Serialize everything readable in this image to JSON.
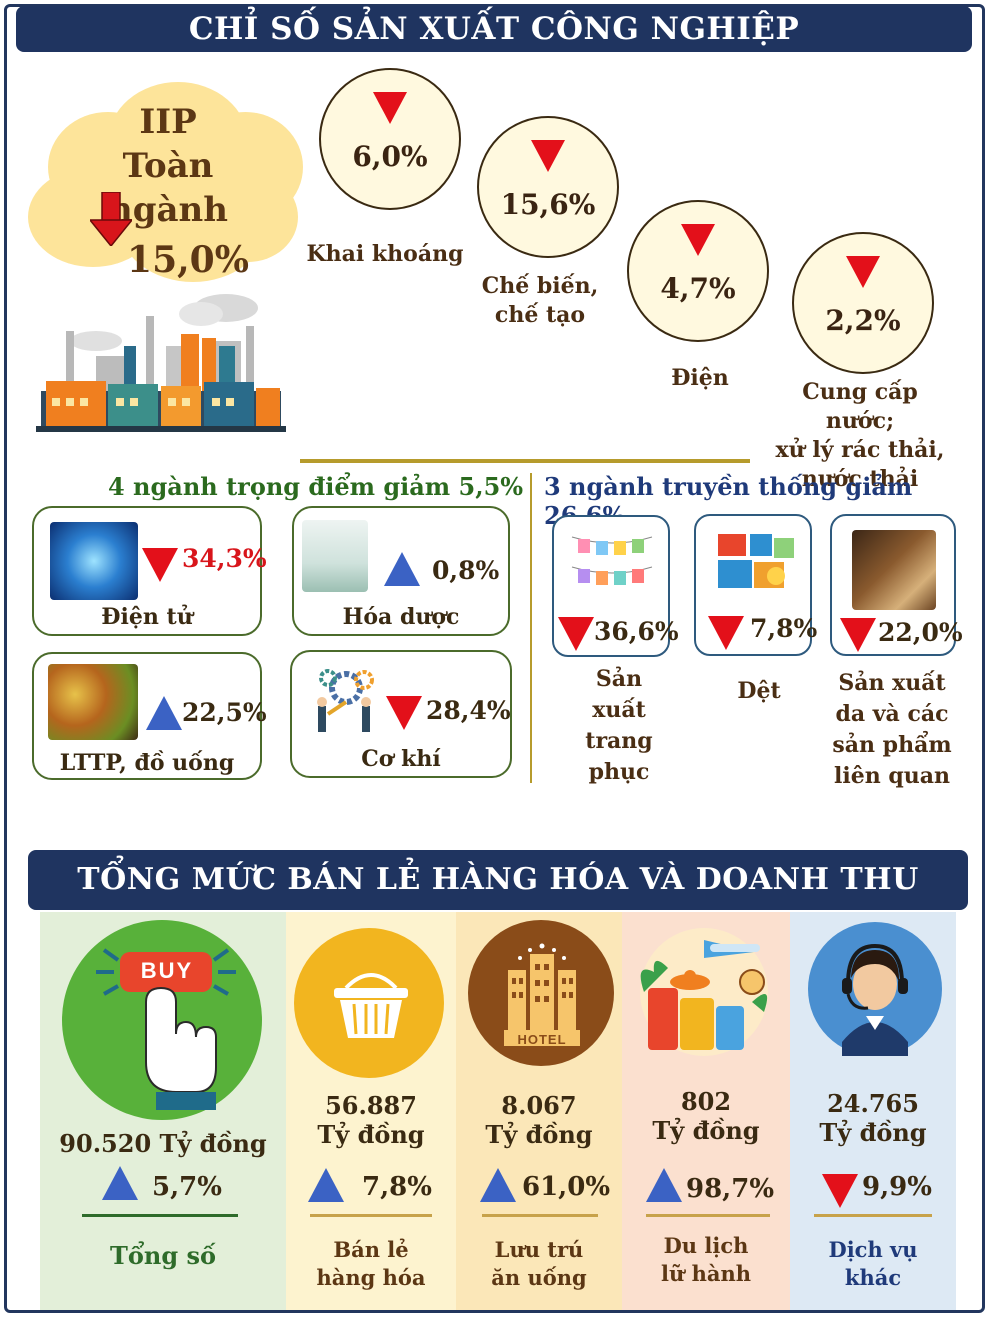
{
  "iip_section": {
    "title": "CHỈ SỐ SẢN XUẤT CÔNG NGHIỆP",
    "overall": {
      "line1": "IIP",
      "line2": "Toàn ngành",
      "value": "15,0%",
      "direction": "down"
    },
    "sectors": [
      {
        "value": "6,0%",
        "label": "Khai khoáng",
        "direction": "down"
      },
      {
        "value": "15,6%",
        "label": "Chế biến, chế tạo",
        "label_l1": "Chế biến,",
        "label_l2": "chế tạo",
        "direction": "down"
      },
      {
        "value": "4,7%",
        "label": "Điện",
        "direction": "down"
      },
      {
        "value": "2,2%",
        "label_l1": "Cung cấp nước;",
        "label_l2": "xử lý rác thải,",
        "label_l3": "nước thải",
        "direction": "down"
      }
    ],
    "key_industries": {
      "heading": "4 ngành trọng điểm giảm 5,5%",
      "items": [
        {
          "label": "Điện tử",
          "value": "34,3%",
          "direction": "down"
        },
        {
          "label": "Hóa dược",
          "value": "0,8%",
          "direction": "up"
        },
        {
          "label": "LTTP, đồ uống",
          "value": "22,5%",
          "direction": "up"
        },
        {
          "label": "Cơ khí",
          "value": "28,4%",
          "direction": "down"
        }
      ]
    },
    "traditional": {
      "heading": "3 ngành truyền thống giảm 26,6%",
      "items": [
        {
          "value": "36,6%",
          "l1": "Sản",
          "l2": "xuất",
          "l3": "trang",
          "l4": "phục",
          "direction": "down"
        },
        {
          "value": "7,8%",
          "l1": "Dệt",
          "direction": "down"
        },
        {
          "value": "22,0%",
          "l1": "Sản xuất",
          "l2": "da và các",
          "l3": "sản phẩm",
          "l4": "liên quan",
          "direction": "down"
        }
      ]
    }
  },
  "retail_section": {
    "title": "TỔNG MỨC BÁN LẺ HÀNG HÓA VÀ DOANH THU DỊCH VỤ",
    "buy_label": "BUY",
    "hotel_label": "HOTEL",
    "columns": [
      {
        "amount": "90.520 Tỷ đồng",
        "pct": "5,7%",
        "direction": "up",
        "cap1": "Tổng số",
        "bg": "#e3efd9"
      },
      {
        "amount": "56.887",
        "unit": "Tỷ đồng",
        "pct": "7,8%",
        "direction": "up",
        "cap1": "Bán lẻ",
        "cap2": "hàng hóa",
        "bg": "#fdf3cf"
      },
      {
        "amount": "8.067",
        "unit": "Tỷ đồng",
        "pct": "61,0%",
        "direction": "up",
        "cap1": "Lưu trú",
        "cap2": "ăn uống",
        "bg": "#fbe7b8"
      },
      {
        "amount": "802",
        "unit": "Tỷ đồng",
        "pct": "98,7%",
        "direction": "up",
        "cap1": "Du lịch",
        "cap2": "lữ hành",
        "bg": "#fbe0cf"
      },
      {
        "amount": "24.765",
        "unit": "Tỷ đồng",
        "pct": "9,9%",
        "direction": "down",
        "cap1": "Dịch vụ",
        "cap2": "khác",
        "bg": "#dde9f4"
      }
    ]
  }
}
